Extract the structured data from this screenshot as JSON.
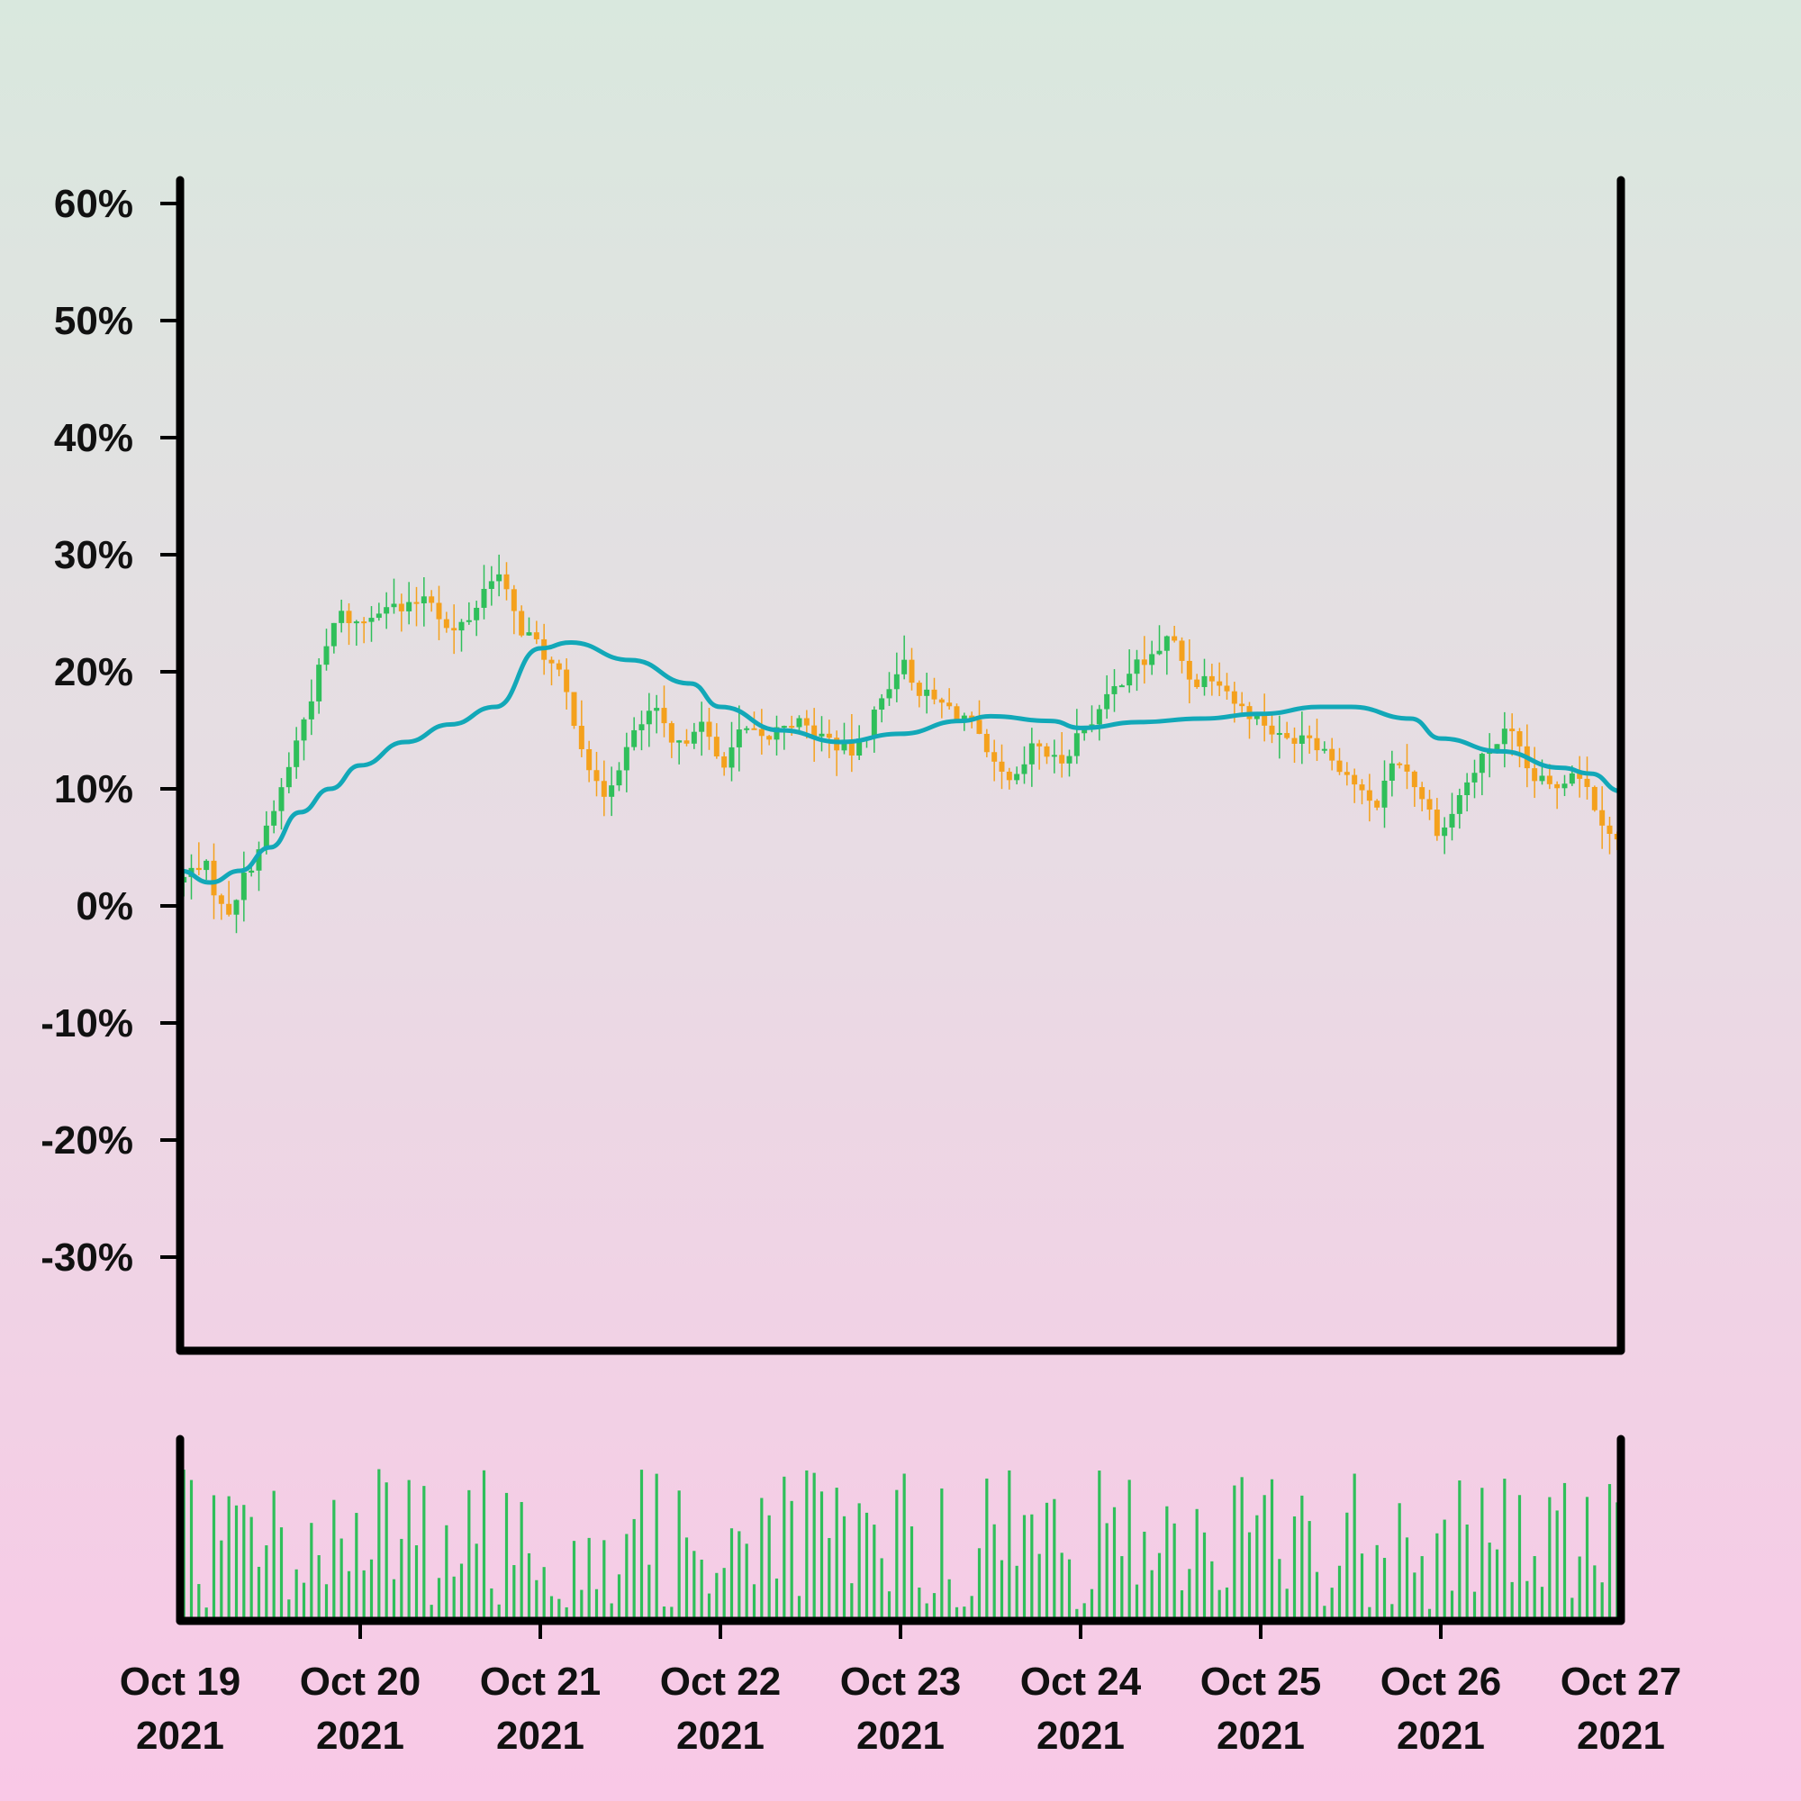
{
  "chart_data": {
    "type": "candlestick",
    "title": "",
    "xlabel": "",
    "ylabel": "",
    "ylim": [
      -0.38,
      0.62
    ],
    "y_ticks": [
      0.6,
      0.5,
      0.4,
      0.3,
      0.2,
      0.1,
      0.0,
      -0.1,
      -0.2,
      -0.3
    ],
    "y_tick_labels": [
      "60%",
      "50%",
      "40%",
      "30%",
      "20%",
      "10%",
      "0%",
      "-10%",
      "-20%",
      "-30%"
    ],
    "xlim": [
      "2021-10-19",
      "2021-10-27"
    ],
    "x_ticks": [
      "2021-10-19",
      "2021-10-20",
      "2021-10-21",
      "2021-10-22",
      "2021-10-23",
      "2021-10-24",
      "2021-10-25",
      "2021-10-26",
      "2021-10-27"
    ],
    "x_tick_labels": [
      {
        "line1": "Oct 19",
        "line2": "2021"
      },
      {
        "line1": "Oct 20",
        "line2": "2021"
      },
      {
        "line1": "Oct 21",
        "line2": "2021"
      },
      {
        "line1": "Oct 22",
        "line2": "2021"
      },
      {
        "line1": "Oct 23",
        "line2": "2021"
      },
      {
        "line1": "Oct 24",
        "line2": "2021"
      },
      {
        "line1": "Oct 25",
        "line2": "2021"
      },
      {
        "line1": "Oct 26",
        "line2": "2021"
      },
      {
        "line1": "Oct 27",
        "line2": "2021"
      }
    ],
    "close_path": [
      [
        "2021-10-19T00:00",
        0.02
      ],
      [
        "2021-10-19T03:00",
        0.04
      ],
      [
        "2021-10-19T06:00",
        -0.01
      ],
      [
        "2021-10-19T09:00",
        0.03
      ],
      [
        "2021-10-19T12:00",
        0.07
      ],
      [
        "2021-10-19T15:00",
        0.13
      ],
      [
        "2021-10-19T18:00",
        0.19
      ],
      [
        "2021-10-19T21:00",
        0.25
      ],
      [
        "2021-10-20T00:00",
        0.24
      ],
      [
        "2021-10-20T03:00",
        0.26
      ],
      [
        "2021-10-20T06:00",
        0.25
      ],
      [
        "2021-10-20T09:00",
        0.27
      ],
      [
        "2021-10-20T12:00",
        0.23
      ],
      [
        "2021-10-20T15:00",
        0.25
      ],
      [
        "2021-10-20T18:00",
        0.29
      ],
      [
        "2021-10-20T21:00",
        0.24
      ],
      [
        "2021-10-21T00:00",
        0.22
      ],
      [
        "2021-10-21T03:00",
        0.19
      ],
      [
        "2021-10-21T06:00",
        0.13
      ],
      [
        "2021-10-21T08:00",
        0.09
      ],
      [
        "2021-10-21T12:00",
        0.14
      ],
      [
        "2021-10-21T15:00",
        0.17
      ],
      [
        "2021-10-21T18:00",
        0.13
      ],
      [
        "2021-10-21T21:00",
        0.16
      ],
      [
        "2021-10-22T00:00",
        0.12
      ],
      [
        "2021-10-22T03:00",
        0.15
      ],
      [
        "2021-10-22T06:00",
        0.14
      ],
      [
        "2021-10-22T09:00",
        0.16
      ],
      [
        "2021-10-22T12:00",
        0.15
      ],
      [
        "2021-10-22T15:00",
        0.14
      ],
      [
        "2021-10-22T18:00",
        0.13
      ],
      [
        "2021-10-22T21:00",
        0.17
      ],
      [
        "2021-10-23T00:00",
        0.21
      ],
      [
        "2021-10-23T03:00",
        0.18
      ],
      [
        "2021-10-23T06:00",
        0.17
      ],
      [
        "2021-10-23T09:00",
        0.16
      ],
      [
        "2021-10-23T12:00",
        0.12
      ],
      [
        "2021-10-23T15:00",
        0.1
      ],
      [
        "2021-10-23T18:00",
        0.14
      ],
      [
        "2021-10-23T21:00",
        0.12
      ],
      [
        "2021-10-24T00:00",
        0.15
      ],
      [
        "2021-10-24T03:00",
        0.17
      ],
      [
        "2021-10-24T06:00",
        0.2
      ],
      [
        "2021-10-24T09:00",
        0.21
      ],
      [
        "2021-10-24T12:00",
        0.23
      ],
      [
        "2021-10-24T15:00",
        0.19
      ],
      [
        "2021-10-24T18:00",
        0.2
      ],
      [
        "2021-10-24T21:00",
        0.17
      ],
      [
        "2021-10-25T00:00",
        0.16
      ],
      [
        "2021-10-25T03:00",
        0.14
      ],
      [
        "2021-10-25T06:00",
        0.15
      ],
      [
        "2021-10-25T09:00",
        0.13
      ],
      [
        "2021-10-25T12:00",
        0.11
      ],
      [
        "2021-10-25T15:00",
        0.08
      ],
      [
        "2021-10-25T18:00",
        0.13
      ],
      [
        "2021-10-25T21:00",
        0.1
      ],
      [
        "2021-10-26T00:00",
        0.06
      ],
      [
        "2021-10-26T03:00",
        0.1
      ],
      [
        "2021-10-26T06:00",
        0.13
      ],
      [
        "2021-10-26T09:00",
        0.15
      ],
      [
        "2021-10-26T12:00",
        0.11
      ],
      [
        "2021-10-26T15:00",
        0.1
      ],
      [
        "2021-10-26T18:00",
        0.12
      ],
      [
        "2021-10-26T21:00",
        0.08
      ],
      [
        "2021-10-27T00:00",
        0.05
      ]
    ],
    "moving_average": [
      [
        "2021-10-19T00:00",
        0.03
      ],
      [
        "2021-10-19T04:00",
        0.02
      ],
      [
        "2021-10-19T08:00",
        0.03
      ],
      [
        "2021-10-19T12:00",
        0.05
      ],
      [
        "2021-10-19T16:00",
        0.08
      ],
      [
        "2021-10-19T20:00",
        0.1
      ],
      [
        "2021-10-20T00:00",
        0.12
      ],
      [
        "2021-10-20T06:00",
        0.14
      ],
      [
        "2021-10-20T12:00",
        0.155
      ],
      [
        "2021-10-20T18:00",
        0.17
      ],
      [
        "2021-10-21T00:00",
        0.22
      ],
      [
        "2021-10-21T04:00",
        0.225
      ],
      [
        "2021-10-21T12:00",
        0.21
      ],
      [
        "2021-10-21T20:00",
        0.19
      ],
      [
        "2021-10-22T00:00",
        0.17
      ],
      [
        "2021-10-22T08:00",
        0.15
      ],
      [
        "2021-10-22T16:00",
        0.14
      ],
      [
        "2021-10-23T00:00",
        0.147
      ],
      [
        "2021-10-23T08:00",
        0.158
      ],
      [
        "2021-10-23T12:00",
        0.162
      ],
      [
        "2021-10-23T20:00",
        0.158
      ],
      [
        "2021-10-24T00:00",
        0.152
      ],
      [
        "2021-10-24T08:00",
        0.157
      ],
      [
        "2021-10-24T16:00",
        0.16
      ],
      [
        "2021-10-25T00:00",
        0.164
      ],
      [
        "2021-10-25T08:00",
        0.17
      ],
      [
        "2021-10-25T12:00",
        0.17
      ],
      [
        "2021-10-25T20:00",
        0.16
      ],
      [
        "2021-10-26T00:00",
        0.143
      ],
      [
        "2021-10-26T08:00",
        0.132
      ],
      [
        "2021-10-26T16:00",
        0.118
      ],
      [
        "2021-10-26T20:00",
        0.113
      ],
      [
        "2021-10-27T00:00",
        0.098
      ]
    ],
    "colors": {
      "up": "#2fbf5a",
      "down": "#f4a11d",
      "moving_average": "#12a8b8",
      "volume": "#2fbf5a",
      "axes": "#000000"
    }
  }
}
